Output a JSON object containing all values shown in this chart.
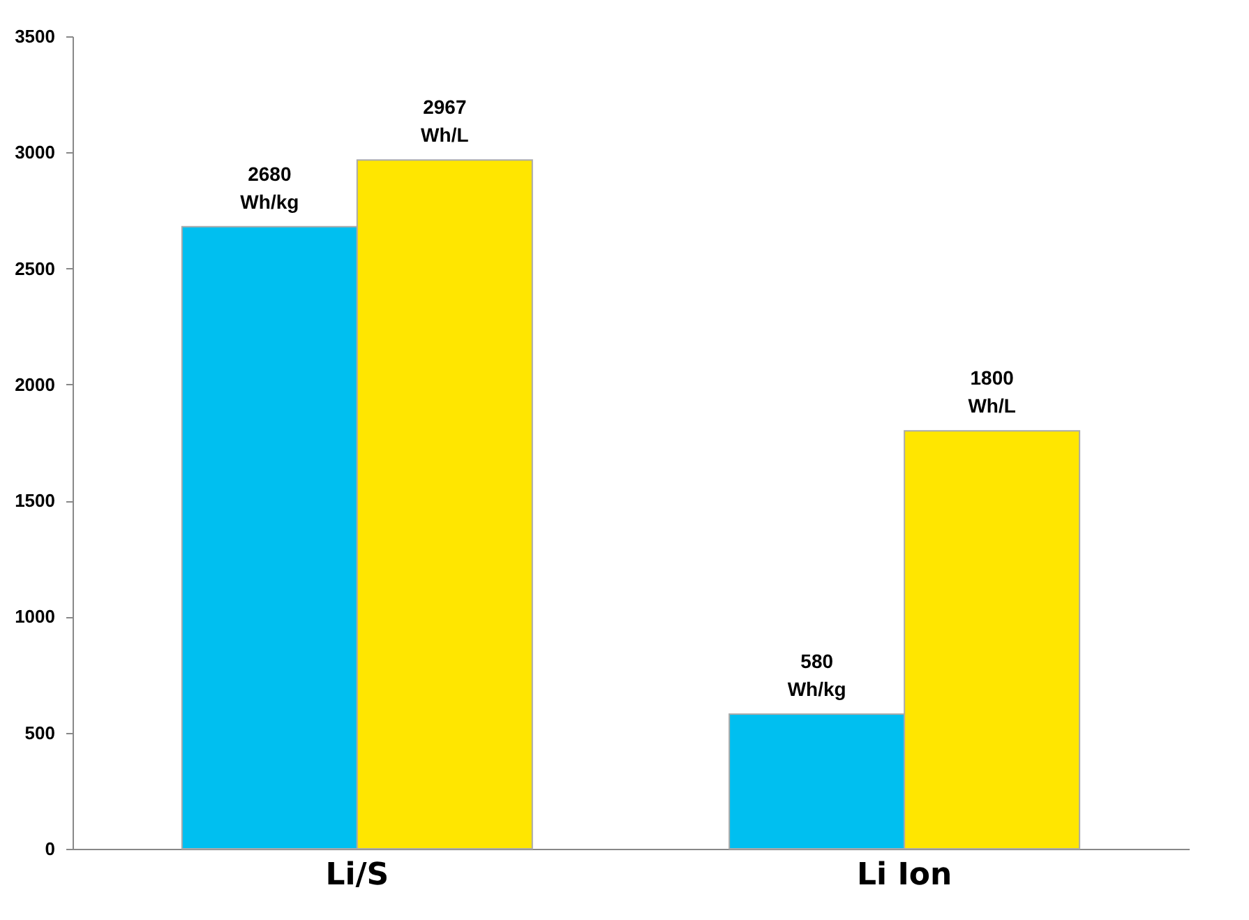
{
  "chart_data": {
    "type": "bar",
    "categories": [
      "Li/S",
      "Li Ion"
    ],
    "series": [
      {
        "color": "#00bff0",
        "values": [
          2680,
          580
        ],
        "value_labels": [
          "2680 Wh/kg",
          "580 Wh/kg"
        ]
      },
      {
        "color": "#ffe600",
        "values": [
          2967,
          1800
        ],
        "value_labels": [
          "2967 Wh/L",
          "1800 Wh/L"
        ]
      }
    ],
    "ylim": [
      0,
      3500
    ],
    "yticks": [
      0,
      500,
      1000,
      1500,
      2000,
      2500,
      3000,
      3500
    ],
    "grid": false,
    "legend": false
  }
}
